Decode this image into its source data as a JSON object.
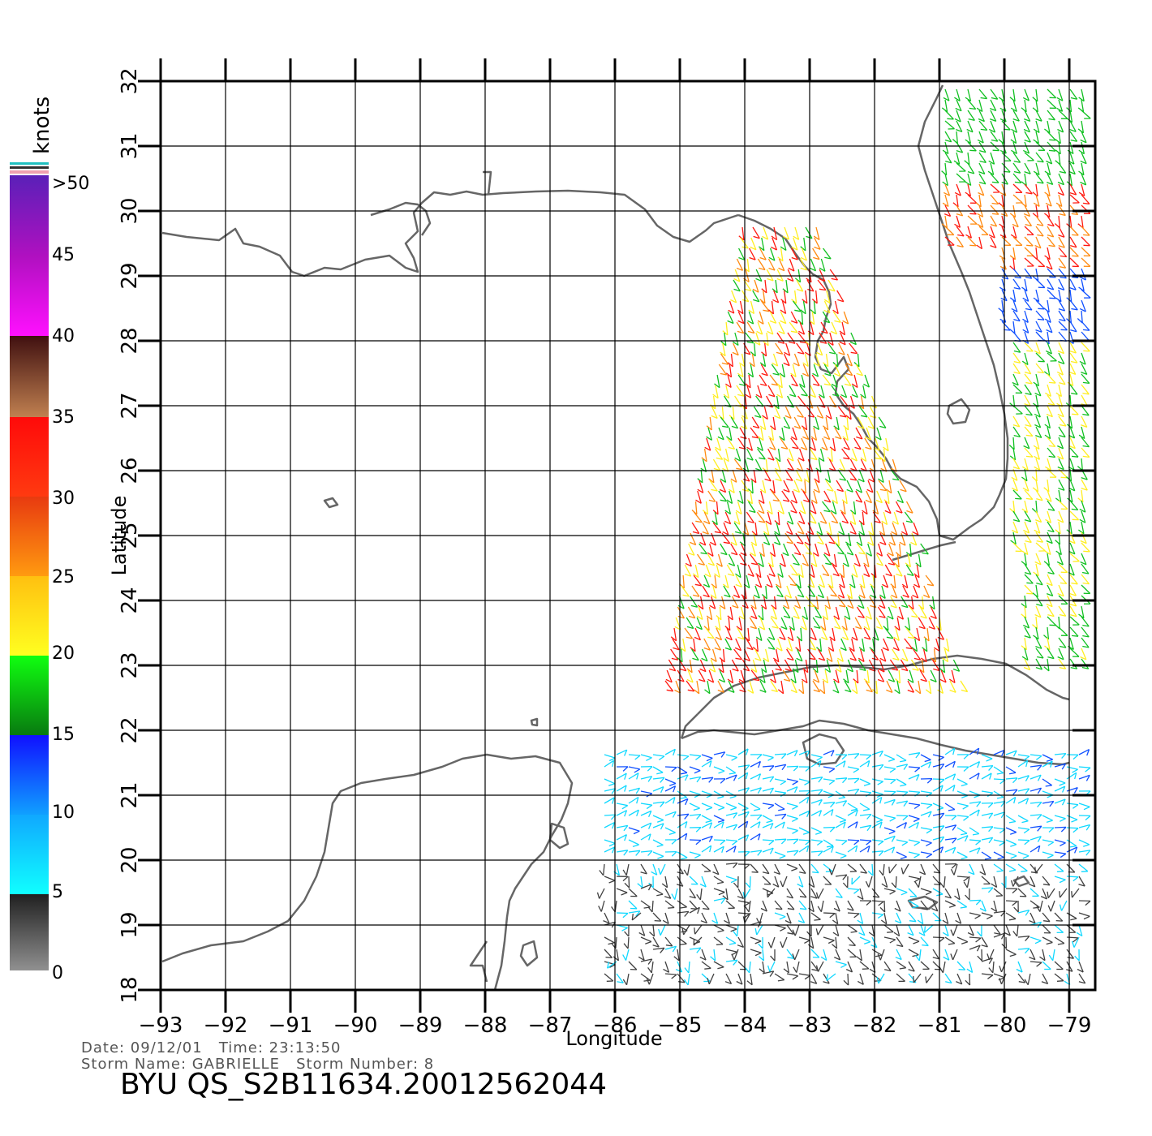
{
  "axes": {
    "xlabel": "Longitude",
    "ylabel": "Latitude",
    "x_ticks": [
      "-93",
      "-92",
      "-91",
      "-90",
      "-89",
      "-88",
      "-87",
      "-86",
      "-85",
      "-84",
      "-83",
      "-82",
      "-81",
      "-80",
      "-79"
    ],
    "y_ticks": [
      "18",
      "19",
      "20",
      "21",
      "22",
      "23",
      "24",
      "25",
      "26",
      "27",
      "28",
      "29",
      "30",
      "31",
      "32"
    ]
  },
  "legend": {
    "title": "knots",
    "labels": [
      ">50",
      "45",
      "40",
      "35",
      "30",
      "25",
      "20",
      "15",
      "10",
      "5",
      "0"
    ],
    "colors": [
      "#6a1fc8",
      "#a010c8",
      "#ee10ee",
      "#b07040",
      "#ff1a10",
      "#ff8a10",
      "#ffee20",
      "#10c020",
      "#1050ff",
      "#10d8ff",
      "#808080"
    ]
  },
  "footer": {
    "date_line": "Date: 09/12/01   Time: 23:13:50",
    "storm_line": "Storm Name: GABRIELLE   Storm Number: 8",
    "product": "BYU QS_S2B11634.20012562044"
  }
}
